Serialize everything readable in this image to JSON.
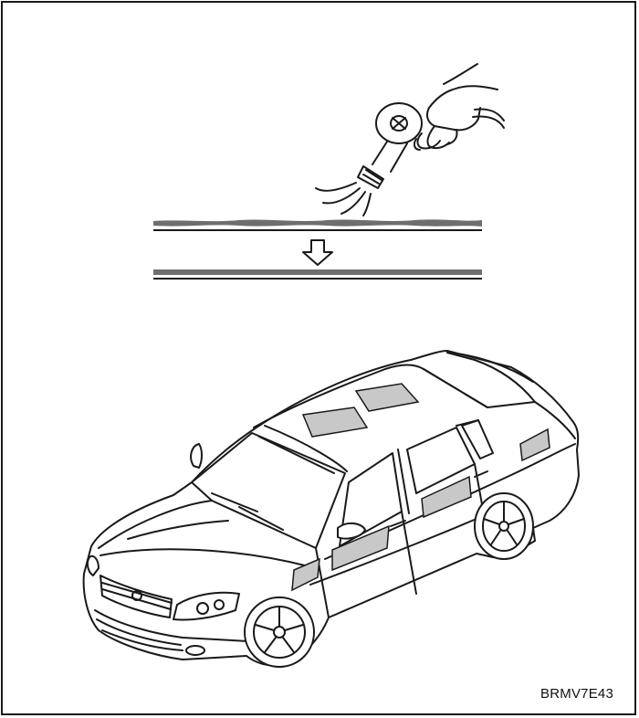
{
  "figure": {
    "reference_code": "BRMV7E43"
  },
  "colors": {
    "ink": "#1a1a1a",
    "strip": "#6e6e6e",
    "patch": "#c8c8c8",
    "background": "#ffffff"
  },
  "icons": {
    "tool": "heat-gun-icon",
    "arrow": "arrow-down-icon",
    "vehicle": "sedan-car-icon"
  }
}
